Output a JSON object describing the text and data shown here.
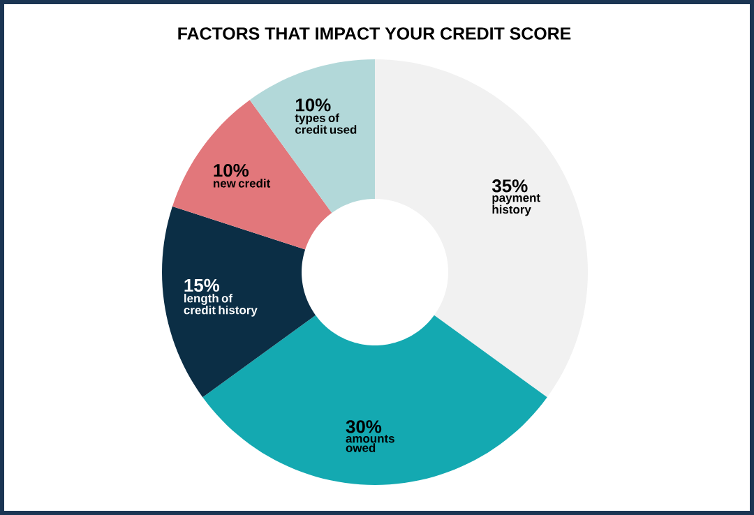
{
  "chart_data": {
    "type": "donut",
    "title": "FACTORS THAT IMPACT YOUR CREDIT SCORE",
    "categories": [
      "payment history",
      "amounts owed",
      "length of credit history",
      "new credit",
      "types of credit used"
    ],
    "values": [
      35,
      30,
      15,
      10,
      10
    ],
    "value_labels": [
      "35%",
      "30%",
      "15%",
      "10%",
      "10%"
    ],
    "colors": [
      "#f1f1f1",
      "#14a9b1",
      "#0b2e45",
      "#e2777b",
      "#b2d8d9"
    ]
  }
}
